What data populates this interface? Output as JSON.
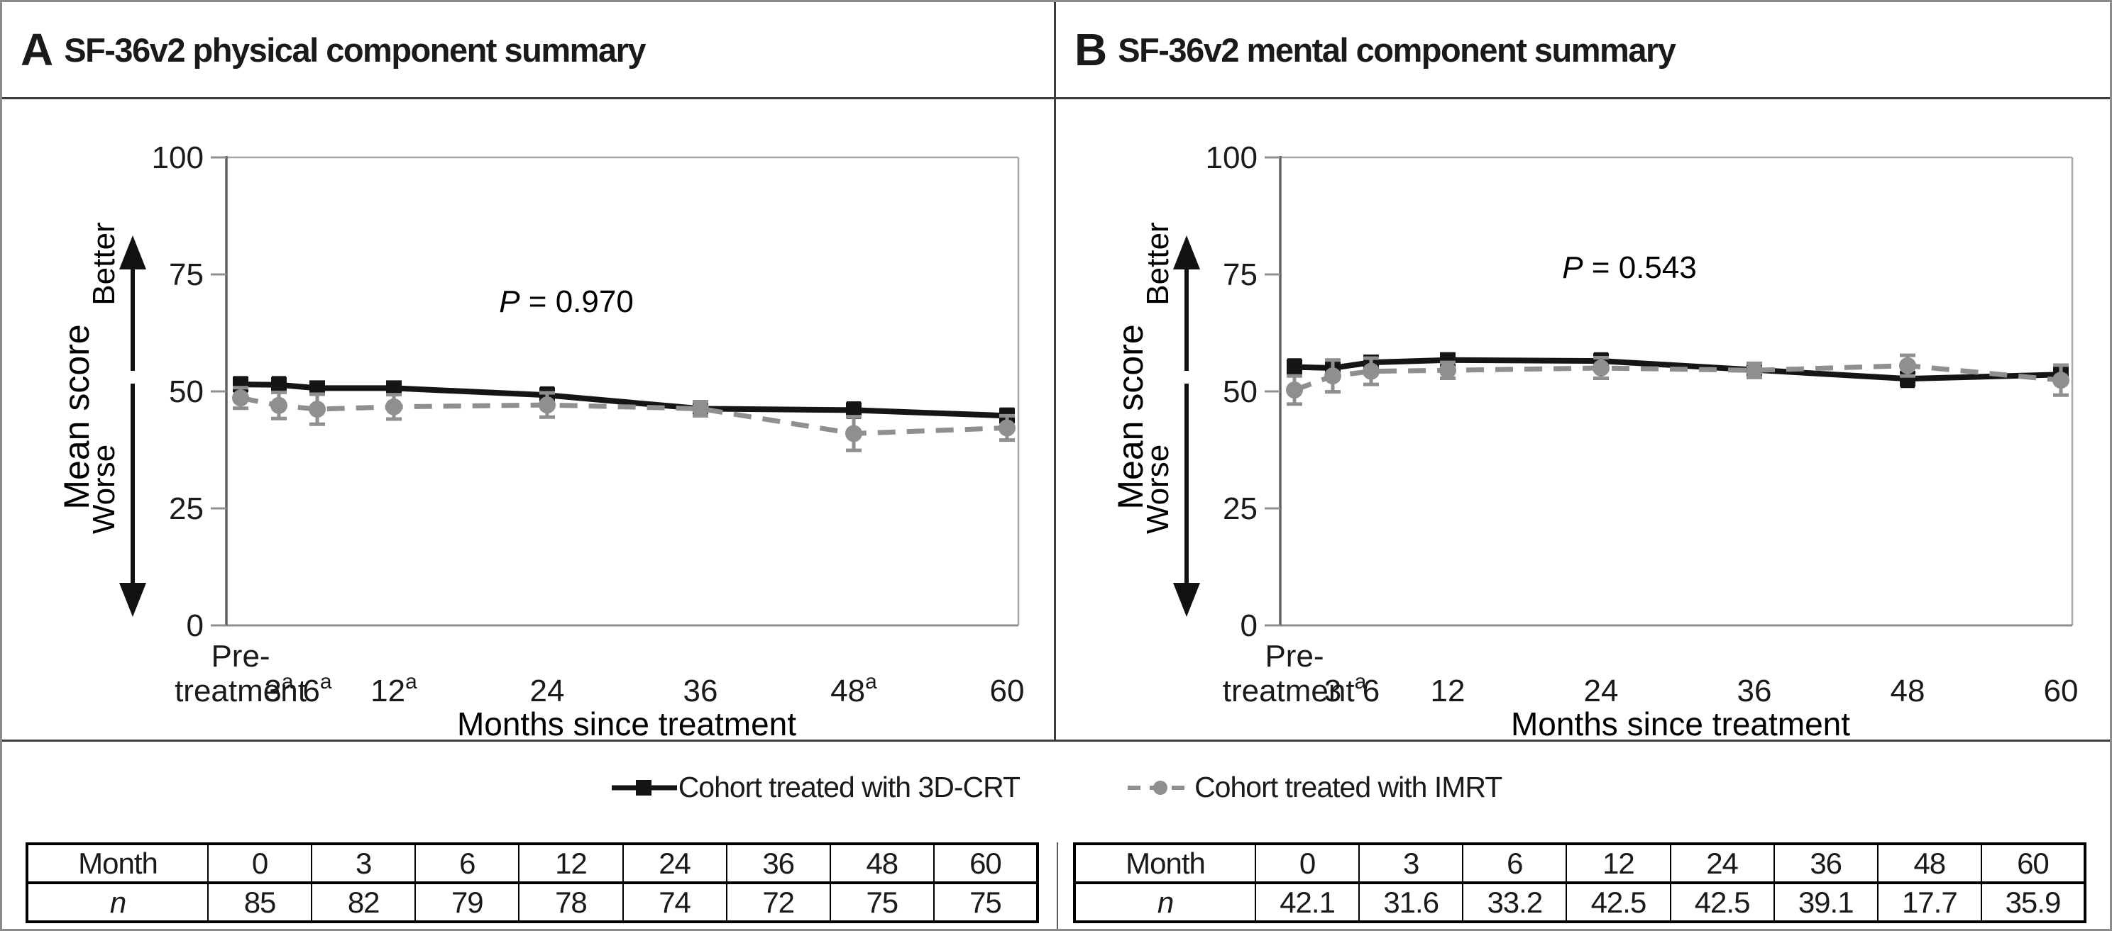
{
  "figure": {
    "colors": {
      "crt": "#151515",
      "imrt": "#8f8f8f",
      "frame_light": "#a8a8a8",
      "frame_dark": "#606060"
    },
    "legend": {
      "items": [
        {
          "key": "crt",
          "label": "Cohort treated with 3D-CRT"
        },
        {
          "key": "imrt",
          "label": "Cohort treated with IMRT"
        }
      ]
    }
  },
  "chart_data": [
    {
      "type": "line",
      "panel": "A",
      "title": "SF-36v2 physical component summary",
      "p_italic": "P",
      "p_rest": " = 0.970",
      "p_pos": {
        "x": 795,
        "y": 300
      },
      "ylabel": "Mean score",
      "y_better": "Better",
      "y_worse": "Worse",
      "xlabel": "Months since treatment",
      "ylim": [
        0,
        100
      ],
      "yticks": [
        0,
        25,
        50,
        75,
        100
      ],
      "months": [
        0,
        3,
        6,
        12,
        24,
        36,
        48,
        60
      ],
      "xtick_labels": [
        {
          "text": "Pre-",
          "text2": "treatment",
          "sup": ""
        },
        {
          "text": "3",
          "sup": "a"
        },
        {
          "text": "6",
          "sup": "a"
        },
        {
          "text": "12",
          "sup": "a"
        },
        {
          "text": "24",
          "sup": ""
        },
        {
          "text": "36",
          "sup": ""
        },
        {
          "text": "48",
          "sup": "a"
        },
        {
          "text": "60",
          "sup": ""
        }
      ],
      "series": [
        {
          "key": "crt",
          "name": "Cohort treated with 3D-CRT",
          "values": [
            51.5,
            51.4,
            50.7,
            50.7,
            49.2,
            46.3,
            46.0,
            44.8
          ],
          "err": [
            1.4,
            1.5,
            1.2,
            1.2,
            1.5,
            1.2,
            1.5,
            1.4
          ]
        },
        {
          "key": "imrt",
          "name": "Cohort treated with IMRT",
          "values": [
            48.6,
            47.0,
            46.2,
            46.7,
            47.1,
            46.3,
            41.0,
            42.2
          ],
          "err": [
            2.2,
            2.8,
            3.2,
            2.6,
            2.6,
            1.5,
            3.6,
            2.6
          ]
        }
      ]
    },
    {
      "type": "line",
      "panel": "B",
      "title": "SF-36v2 mental component summary",
      "p_italic": "P",
      "p_rest": " = 0.543",
      "p_pos": {
        "x": 808,
        "y": 252
      },
      "ylabel": "Mean score",
      "y_better": "Better",
      "y_worse": "Worse",
      "xlabel": "Months since treatment",
      "ylim": [
        0,
        100
      ],
      "yticks": [
        0,
        25,
        50,
        75,
        100
      ],
      "months": [
        0,
        3,
        6,
        12,
        24,
        36,
        48,
        60
      ],
      "xtick_labels": [
        {
          "text": "Pre-",
          "text2": "treatment",
          "sup": "a"
        },
        {
          "text": "3",
          "sup": ""
        },
        {
          "text": "6",
          "sup": ""
        },
        {
          "text": "12",
          "sup": ""
        },
        {
          "text": "24",
          "sup": ""
        },
        {
          "text": "36",
          "sup": ""
        },
        {
          "text": "48",
          "sup": ""
        },
        {
          "text": "60",
          "sup": ""
        }
      ],
      "series": [
        {
          "key": "crt",
          "name": "Cohort treated with 3D-CRT",
          "values": [
            55.2,
            55.0,
            56.2,
            56.7,
            56.5,
            54.6,
            52.7,
            53.6
          ],
          "err": [
            1.5,
            1.4,
            1.3,
            1.3,
            1.5,
            1.3,
            1.6,
            1.5
          ]
        },
        {
          "key": "imrt",
          "name": "Cohort treated with IMRT",
          "values": [
            50.3,
            53.3,
            54.3,
            54.5,
            55.0,
            54.5,
            55.5,
            52.4
          ],
          "err": [
            3.0,
            3.4,
            2.8,
            1.7,
            2.2,
            1.5,
            2.2,
            3.2
          ]
        }
      ]
    }
  ],
  "tables": [
    {
      "header_label": "Month",
      "row_label": "n",
      "months": [
        "0",
        "3",
        "6",
        "12",
        "24",
        "36",
        "48",
        "60"
      ],
      "n": [
        "85",
        "82",
        "79",
        "78",
        "74",
        "72",
        "75",
        "75"
      ]
    },
    {
      "header_label": "Month",
      "row_label": "n",
      "months": [
        "0",
        "3",
        "6",
        "12",
        "24",
        "36",
        "48",
        "60"
      ],
      "n": [
        "42.1",
        "31.6",
        "33.2",
        "42.5",
        "42.5",
        "39.1",
        "17.7",
        "35.9"
      ]
    }
  ]
}
